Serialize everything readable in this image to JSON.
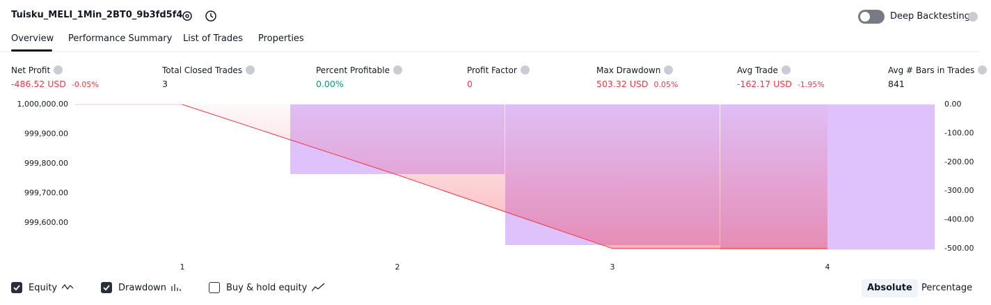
{
  "header": {
    "title": "Tuisku_MELI_1Min_2BT0_9b3fd5f4",
    "toggle_label": "Deep Backtesting",
    "toggle_on": false
  },
  "tabs": [
    "Overview",
    "Performance Summary",
    "List of Trades",
    "Properties"
  ],
  "active_tab": 0,
  "metrics": [
    {
      "label": "Net Profit",
      "value": "-486.52 USD",
      "percent": "-0.05%",
      "tone": "neg"
    },
    {
      "label": "Total Closed Trades",
      "value": "3",
      "tone": "plain"
    },
    {
      "label": "Percent Profitable",
      "value": "0.00%",
      "tone": "pos"
    },
    {
      "label": "Profit Factor",
      "value": "0",
      "tone": "neg"
    },
    {
      "label": "Max Drawdown",
      "value": "503.32 USD",
      "percent": "0.05%",
      "tone": "neg"
    },
    {
      "label": "Avg Trade",
      "value": "-162.17 USD",
      "percent": "-1.95%",
      "tone": "neg"
    },
    {
      "label": "Avg # Bars in Trades",
      "value": "841",
      "tone": "plain"
    }
  ],
  "chart_data": {
    "type": "bar-line",
    "categories": [
      "1",
      "2",
      "3",
      "4"
    ],
    "series": [
      {
        "name": "Equity",
        "color": "#f23645",
        "axis": "y",
        "visible": true,
        "values": [
          1000000,
          999762,
          999513.48,
          999513.48
        ]
      },
      {
        "name": "Drawdown",
        "color": "#dfc2fb",
        "axis": "y2",
        "visible": true,
        "values": [
          0,
          -241.5,
          -488,
          -503.32
        ]
      }
    ],
    "benchmark": {
      "name": "Buy & hold equity",
      "visible": false
    },
    "ylim": [
      999513,
      1000000
    ],
    "yticks": [
      {
        "value": 1000000,
        "label": "1,000,000.00"
      },
      {
        "value": 999900,
        "label": "999,900.00"
      },
      {
        "value": 999800,
        "label": "999,800.00"
      },
      {
        "value": 999700,
        "label": "999,700.00"
      },
      {
        "value": 999600,
        "label": "999,600.00"
      }
    ],
    "y2lim": [
      -500,
      0
    ],
    "y2ticks": [
      {
        "value": 0,
        "label": "0.00"
      },
      {
        "value": -100,
        "label": "-100.00"
      },
      {
        "value": -200,
        "label": "-200.00"
      },
      {
        "value": -300,
        "label": "-300.00"
      },
      {
        "value": -400,
        "label": "-400.00"
      },
      {
        "value": -500,
        "label": "-500.00"
      }
    ],
    "grid": false
  },
  "scale_buttons": [
    "Absolute",
    "Percentage"
  ],
  "active_scale": 0
}
